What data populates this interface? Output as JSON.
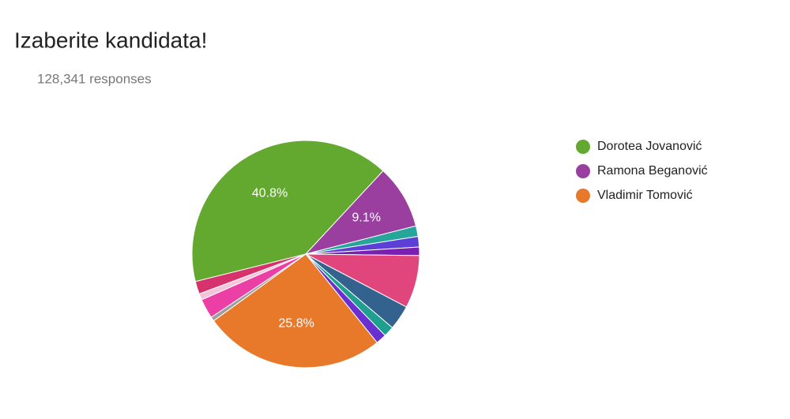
{
  "chart_data": {
    "type": "pie",
    "title": "Izaberite kandidata!",
    "subtitle": "128,341 responses",
    "categories": [
      "Dorotea Jovanović",
      "Ramona Beganović",
      null,
      null,
      null,
      null,
      null,
      null,
      null,
      "Vladimir Tomović",
      null,
      null,
      null,
      null
    ],
    "values": [
      40.8,
      9.1,
      1.5,
      1.5,
      1.2,
      7.5,
      3.5,
      1.5,
      1.5,
      25.8,
      0.6,
      2.8,
      0.9,
      1.8
    ],
    "value_labels": [
      "40.8%",
      "9.1%",
      null,
      null,
      null,
      null,
      null,
      null,
      null,
      "25.8%",
      null,
      null,
      null,
      null
    ],
    "colors": [
      "#63a82f",
      "#9a3f9f",
      "#26a69a",
      "#5b3fd6",
      "#7b1fb2",
      "#e0457b",
      "#33628f",
      "#1fa08e",
      "#6a2fd0",
      "#e8792b",
      "#9e9e9e",
      "#ec3fa6",
      "#f4c4d8",
      "#d6336c"
    ],
    "legend": "right"
  }
}
